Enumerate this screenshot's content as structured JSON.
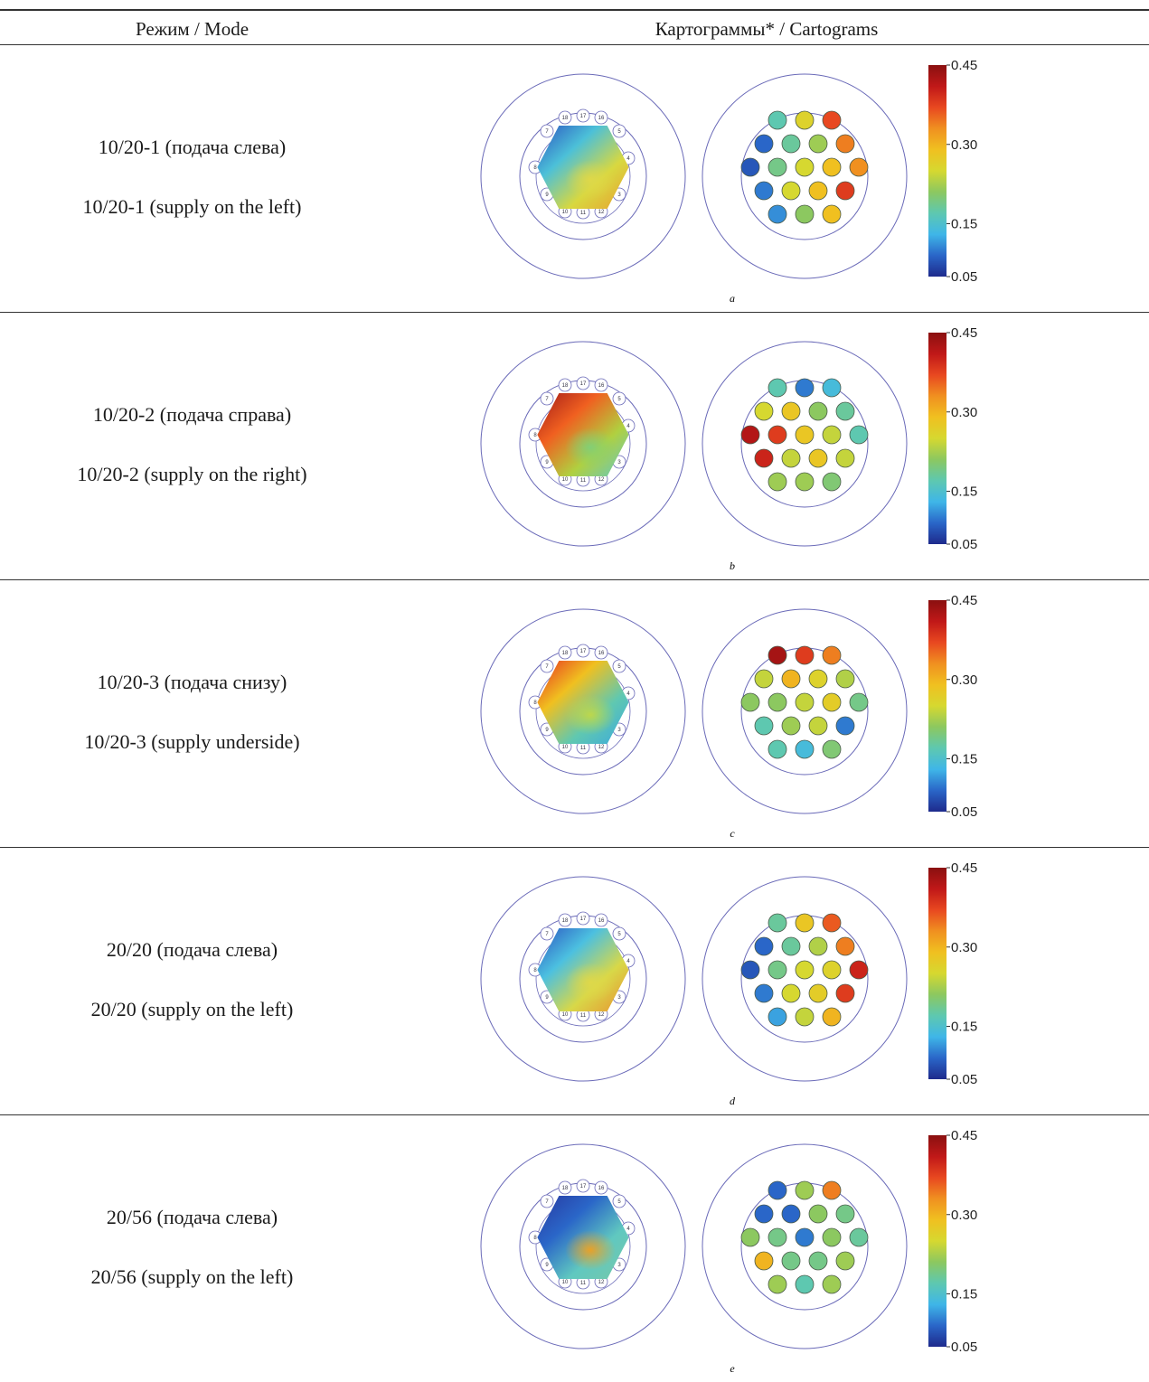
{
  "table": {
    "header_mode": "Режим / Mode",
    "header_cartograms": "Картограммы* / Cartograms"
  },
  "colorbar": {
    "ticks": [
      "0.45",
      "0.30",
      "0.15",
      "0.05"
    ],
    "range": [
      0.05,
      0.45
    ]
  },
  "colors": {
    "line": "#6a6ab8",
    "scale": [
      "#1e2a8c",
      "#2a66c8",
      "#3fb6e8",
      "#5ec8b0",
      "#8cc860",
      "#d6d830",
      "#f0c020",
      "#f09020",
      "#e84820",
      "#c01818",
      "#8a1010"
    ]
  },
  "rows": [
    {
      "mode_ru": "10/20-1 (подача слева)",
      "mode_en": "10/20-1 (supply on the left)",
      "label": "a",
      "pins": [
        "18",
        "17",
        "16",
        "5",
        "4",
        "3",
        "12",
        "11",
        "10",
        "9",
        "8",
        "7"
      ],
      "values": [
        0.17,
        0.26,
        0.37,
        0.09,
        0.18,
        0.22,
        0.34,
        0.08,
        0.19,
        0.25,
        0.29,
        0.33,
        0.1,
        0.25,
        0.29,
        0.38,
        0.11,
        0.21,
        0.29
      ],
      "hex": [
        {
          "stops": [
            "#2a52c0",
            "#4cc0d8",
            "#d8d840",
            "#e8a030"
          ],
          "blob": "#e0d848"
        }
      ]
    },
    {
      "mode_ru": "10/20-2 (подача справа)",
      "mode_en": "10/20-2 (supply on the right)",
      "label": "b",
      "pins": [
        "18",
        "17",
        "16",
        "5",
        "4",
        "3",
        "12",
        "11",
        "10",
        "9",
        "8",
        "7"
      ],
      "values": [
        0.17,
        0.1,
        0.14,
        0.25,
        0.28,
        0.21,
        0.18,
        0.42,
        0.38,
        0.28,
        0.24,
        0.17,
        0.4,
        0.24,
        0.28,
        0.24,
        0.22,
        0.22,
        0.2
      ],
      "hex": [
        {
          "stops": [
            "#a01818",
            "#f06020",
            "#b0d040",
            "#60c8c8"
          ],
          "blob": "#80d078"
        }
      ]
    },
    {
      "mode_ru": "10/20-3 (подача снизу)",
      "mode_en": "10/20-3 (supply underside)",
      "label": "c",
      "pins": [
        "18",
        "17",
        "16",
        "5",
        "4",
        "3",
        "12",
        "11",
        "10",
        "9",
        "8",
        "7"
      ],
      "values": [
        0.43,
        0.38,
        0.34,
        0.24,
        0.3,
        0.26,
        0.23,
        0.21,
        0.21,
        0.24,
        0.27,
        0.19,
        0.17,
        0.22,
        0.24,
        0.1,
        0.17,
        0.14
      ],
      "hex": [
        {
          "stops": [
            "#e83020",
            "#f0c020",
            "#60c8b0",
            "#3aa8e0"
          ],
          "blob": "#c0d848"
        }
      ]
    },
    {
      "mode_ru": "20/20 (подача слева)",
      "mode_en": "20/20 (supply on the left)",
      "label": "d",
      "pins": [
        "18",
        "17",
        "16",
        "5",
        "4",
        "3",
        "12",
        "11",
        "10",
        "9",
        "8",
        "7"
      ],
      "values": [
        0.18,
        0.28,
        0.36,
        0.09,
        0.18,
        0.23,
        0.34,
        0.08,
        0.19,
        0.25,
        0.26,
        0.4,
        0.1,
        0.25,
        0.27,
        0.38,
        0.12,
        0.24,
        0.3
      ],
      "hex": [
        {
          "stops": [
            "#2a52c0",
            "#4cc0e0",
            "#d8d848",
            "#e89030"
          ],
          "blob": "#e0d848"
        }
      ]
    },
    {
      "mode_ru": "20/56 (подача слева)",
      "mode_en": "20/56 (supply on the left)",
      "label": "e",
      "pins": [
        "18",
        "17",
        "16",
        "5",
        "4",
        "3",
        "12",
        "11",
        "10",
        "9",
        "8",
        "7"
      ],
      "values": [
        0.09,
        0.22,
        0.34,
        0.09,
        0.09,
        0.21,
        0.19,
        0.21,
        0.19,
        0.1,
        0.21,
        0.18,
        0.3,
        0.19,
        0.19,
        0.22,
        0.22,
        0.17,
        0.22
      ],
      "hex": [
        {
          "stops": [
            "#2838a0",
            "#2a66c8",
            "#60c8c0",
            "#78c8a8"
          ],
          "blob": "#f0a020"
        }
      ]
    }
  ]
}
